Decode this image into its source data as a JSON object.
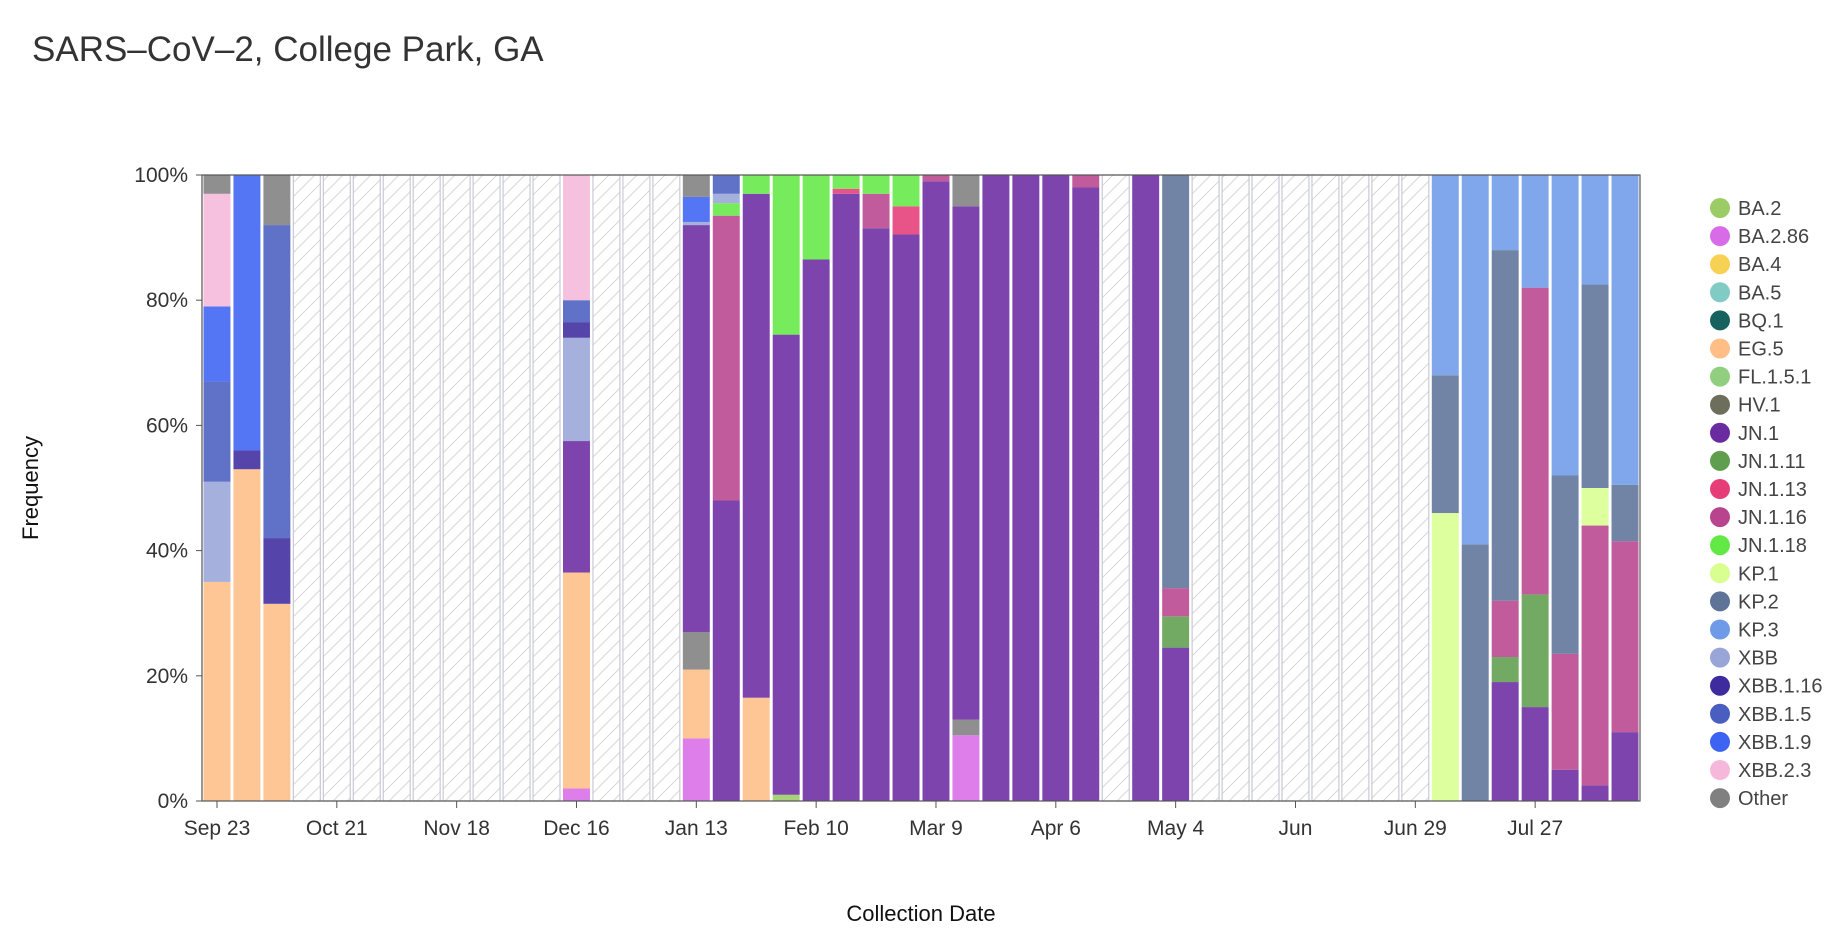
{
  "chart_data": {
    "type": "bar",
    "stacked": true,
    "normalized": true,
    "title": "SARS–CoV–2, College Park, GA",
    "xlabel": "Collection Date",
    "ylabel": "Frequency",
    "ylim": [
      0,
      100
    ],
    "y_ticks": [
      "0%",
      "20%",
      "40%",
      "60%",
      "80%",
      "100%"
    ],
    "x_ticks": [
      {
        "week": 0,
        "label": "Sep 23"
      },
      {
        "week": 4,
        "label": "Oct 21"
      },
      {
        "week": 8,
        "label": "Nov 18"
      },
      {
        "week": 12,
        "label": "Dec 16"
      },
      {
        "week": 16,
        "label": "Jan 13"
      },
      {
        "week": 20,
        "label": "Feb 10"
      },
      {
        "week": 24,
        "label": "Mar 9"
      },
      {
        "week": 28,
        "label": "Apr 6"
      },
      {
        "week": 32,
        "label": "May 4"
      },
      {
        "week": 36,
        "label": "Jun"
      },
      {
        "week": 40,
        "label": "Jun 29"
      },
      {
        "week": 44,
        "label": "Jul 27"
      }
    ],
    "weeks_total": 48,
    "legend": {
      "position": "right",
      "entries": [
        {
          "name": "BA.2",
          "color": "#9ccc65"
        },
        {
          "name": "BA.2.86",
          "color": "#d86ce8"
        },
        {
          "name": "BA.4",
          "color": "#f7d154"
        },
        {
          "name": "BA.5",
          "color": "#80cbc4"
        },
        {
          "name": "BQ.1",
          "color": "#17625f"
        },
        {
          "name": "EG.5",
          "color": "#ffbe86"
        },
        {
          "name": "FL.1.5.1",
          "color": "#8fcf7f"
        },
        {
          "name": "HV.1",
          "color": "#6e6e5c"
        },
        {
          "name": "JN.1",
          "color": "#6a2aa0"
        },
        {
          "name": "JN.1.11",
          "color": "#5e9e4e"
        },
        {
          "name": "JN.1.13",
          "color": "#e63c78"
        },
        {
          "name": "JN.1.16",
          "color": "#b8448e"
        },
        {
          "name": "JN.1.18",
          "color": "#63e945"
        },
        {
          "name": "KP.1",
          "color": "#d8ff90"
        },
        {
          "name": "KP.2",
          "color": "#5f7399"
        },
        {
          "name": "KP.3",
          "color": "#6e9ae8"
        },
        {
          "name": "XBB",
          "color": "#9aa5d7"
        },
        {
          "name": "XBB.1.16",
          "color": "#3e2b9e"
        },
        {
          "name": "XBB.1.5",
          "color": "#4a5ec0"
        },
        {
          "name": "XBB.1.9",
          "color": "#3d63f2"
        },
        {
          "name": "XBB.2.3",
          "color": "#f5b8db"
        },
        {
          "name": "Other",
          "color": "#808080"
        }
      ]
    },
    "weeks": [
      {
        "week": 0,
        "segments": [
          [
            "EG.5",
            35
          ],
          [
            "XBB",
            16
          ],
          [
            "XBB.1.5",
            16
          ],
          [
            "XBB.1.9",
            12
          ],
          [
            "XBB.2.3",
            18
          ],
          [
            "Other",
            3
          ]
        ]
      },
      {
        "week": 1,
        "segments": [
          [
            "EG.5",
            53
          ],
          [
            "XBB.1.16",
            3
          ],
          [
            "XBB.1.9",
            44
          ]
        ]
      },
      {
        "week": 2,
        "segments": [
          [
            "EG.5",
            31.5
          ],
          [
            "XBB.1.16",
            10.5
          ],
          [
            "XBB.1.5",
            50
          ],
          [
            "Other",
            8
          ]
        ]
      },
      {
        "week": 3,
        "no_data": true
      },
      {
        "week": 4,
        "no_data": true
      },
      {
        "week": 5,
        "no_data": true
      },
      {
        "week": 6,
        "no_data": true
      },
      {
        "week": 7,
        "no_data": true
      },
      {
        "week": 8,
        "no_data": true
      },
      {
        "week": 9,
        "no_data": true
      },
      {
        "week": 10,
        "no_data": true
      },
      {
        "week": 11,
        "no_data": true
      },
      {
        "week": 12,
        "segments": [
          [
            "BA.2.86",
            2
          ],
          [
            "EG.5",
            34.5
          ],
          [
            "JN.1",
            21
          ],
          [
            "XBB",
            16.5
          ],
          [
            "XBB.1.16",
            2.5
          ],
          [
            "XBB.1.5",
            3.5
          ],
          [
            "XBB.2.3",
            20
          ]
        ]
      },
      {
        "week": 13,
        "no_data": true
      },
      {
        "week": 14,
        "no_data": true
      },
      {
        "week": 15,
        "no_data": true
      },
      {
        "week": 16,
        "segments": [
          [
            "BA.2.86",
            10
          ],
          [
            "EG.5",
            11
          ],
          [
            "Other",
            6
          ],
          [
            "JN.1",
            65
          ],
          [
            "XBB",
            0.5
          ],
          [
            "XBB.1.9",
            4
          ],
          [
            "Other",
            3.5
          ]
        ]
      },
      {
        "week": 17,
        "segments": [
          [
            "JN.1",
            48
          ],
          [
            "JN.1.16",
            45.5
          ],
          [
            "JN.1.18",
            2
          ],
          [
            "XBB",
            1.5
          ],
          [
            "XBB.1.5",
            3
          ]
        ]
      },
      {
        "week": 18,
        "segments": [
          [
            "EG.5",
            16.5
          ],
          [
            "JN.1",
            80.5
          ],
          [
            "JN.1.18",
            3
          ]
        ]
      },
      {
        "week": 19,
        "segments": [
          [
            "BA.2",
            1
          ],
          [
            "JN.1",
            73.5
          ],
          [
            "JN.1.18",
            25.5
          ]
        ]
      },
      {
        "week": 20,
        "segments": [
          [
            "JN.1",
            86.5
          ],
          [
            "JN.1.18",
            13.5
          ]
        ]
      },
      {
        "week": 21,
        "segments": [
          [
            "JN.1",
            97
          ],
          [
            "JN.1.13",
            0.8
          ],
          [
            "JN.1.18",
            2.2
          ]
        ]
      },
      {
        "week": 22,
        "segments": [
          [
            "JN.1",
            91.5
          ],
          [
            "JN.1.16",
            5.5
          ],
          [
            "JN.1.18",
            3
          ]
        ]
      },
      {
        "week": 23,
        "segments": [
          [
            "JN.1",
            90.5
          ],
          [
            "JN.1.13",
            4.5
          ],
          [
            "JN.1.18",
            5
          ]
        ]
      },
      {
        "week": 24,
        "segments": [
          [
            "JN.1",
            99
          ],
          [
            "JN.1.16",
            1
          ]
        ]
      },
      {
        "week": 25,
        "segments": [
          [
            "BA.2.86",
            10.5
          ],
          [
            "Other",
            2.5
          ],
          [
            "JN.1",
            82
          ],
          [
            "Other",
            5
          ]
        ]
      },
      {
        "week": 26,
        "segments": [
          [
            "JN.1",
            100
          ]
        ]
      },
      {
        "week": 27,
        "segments": [
          [
            "JN.1",
            100
          ]
        ]
      },
      {
        "week": 28,
        "segments": [
          [
            "JN.1",
            100
          ]
        ]
      },
      {
        "week": 29,
        "segments": [
          [
            "JN.1",
            98
          ],
          [
            "JN.1.16",
            2
          ]
        ]
      },
      {
        "week": 30,
        "no_data": true
      },
      {
        "week": 31,
        "segments": [
          [
            "JN.1",
            100
          ]
        ]
      },
      {
        "week": 32,
        "segments": [
          [
            "JN.1",
            24.5
          ],
          [
            "JN.1.11",
            5
          ],
          [
            "JN.1.16",
            4.5
          ],
          [
            "KP.2",
            66
          ]
        ]
      },
      {
        "week": 33,
        "no_data": true
      },
      {
        "week": 34,
        "no_data": true
      },
      {
        "week": 35,
        "no_data": true
      },
      {
        "week": 36,
        "no_data": true
      },
      {
        "week": 37,
        "no_data": true
      },
      {
        "week": 38,
        "no_data": true
      },
      {
        "week": 39,
        "no_data": true
      },
      {
        "week": 40,
        "no_data": true
      },
      {
        "week": 41,
        "segments": [
          [
            "KP.1",
            46
          ],
          [
            "KP.2",
            22
          ],
          [
            "KP.3",
            32
          ]
        ]
      },
      {
        "week": 42,
        "segments": [
          [
            "KP.2",
            41
          ],
          [
            "KP.3",
            59
          ]
        ]
      },
      {
        "week": 43,
        "segments": [
          [
            "JN.1",
            19
          ],
          [
            "JN.1.11",
            4
          ],
          [
            "JN.1.16",
            9
          ],
          [
            "KP.2",
            56
          ],
          [
            "KP.3",
            12
          ]
        ]
      },
      {
        "week": 44,
        "segments": [
          [
            "JN.1",
            15
          ],
          [
            "JN.1.11",
            18
          ],
          [
            "JN.1.16",
            49
          ],
          [
            "KP.3",
            18
          ]
        ]
      },
      {
        "week": 45,
        "segments": [
          [
            "JN.1",
            5
          ],
          [
            "JN.1.16",
            18.5
          ],
          [
            "KP.2",
            28.5
          ],
          [
            "KP.3",
            48
          ]
        ]
      },
      {
        "week": 46,
        "segments": [
          [
            "JN.1",
            2.5
          ],
          [
            "JN.1.16",
            41.5
          ],
          [
            "KP.1",
            6
          ],
          [
            "KP.2",
            32.5
          ],
          [
            "KP.3",
            17.5
          ]
        ]
      },
      {
        "week": 47,
        "segments": [
          [
            "JN.1",
            11
          ],
          [
            "JN.1.16",
            30.5
          ],
          [
            "KP.2",
            9
          ],
          [
            "KP.3",
            49.5
          ]
        ]
      }
    ]
  }
}
